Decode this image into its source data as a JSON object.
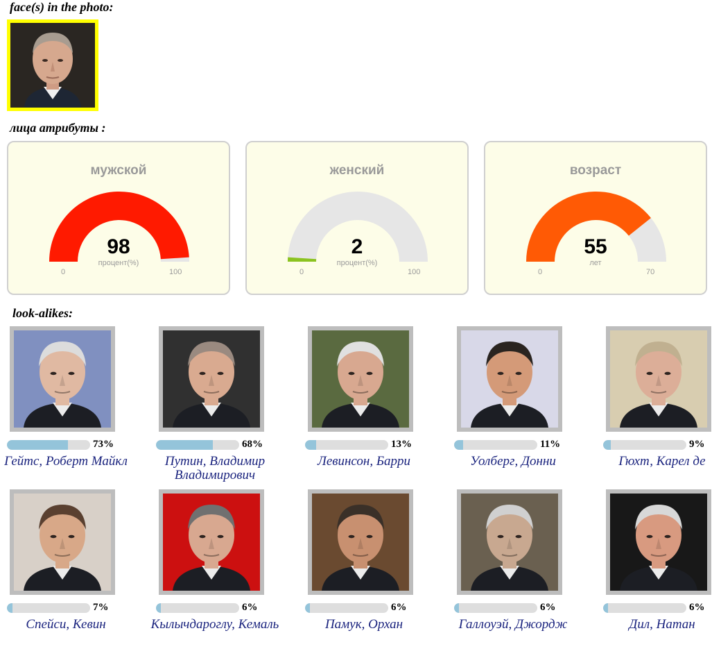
{
  "sections": {
    "faces_title": "face(s) in the photo:",
    "attributes_title": "лица атрибуты :",
    "lookalikes_title": "look-alikes:"
  },
  "detected_face": {
    "icon": "face-photo-icon",
    "border_color": "#ffff00"
  },
  "gauges": [
    {
      "id": "male",
      "title": "мужской",
      "value": 98,
      "display": "98",
      "unit": "процент(%)",
      "min": 0,
      "max": 100,
      "min_label": "0",
      "max_label": "100",
      "color": "#ff1a00"
    },
    {
      "id": "female",
      "title": "женский",
      "value": 2,
      "display": "2",
      "unit": "процент(%)",
      "min": 0,
      "max": 100,
      "min_label": "0",
      "max_label": "100",
      "color": "#8bc320"
    },
    {
      "id": "age",
      "title": "возраст",
      "value": 55,
      "display": "55",
      "unit": "лет",
      "min": 0,
      "max": 70,
      "min_label": "0",
      "max_label": "70",
      "color": "#ff5a05"
    }
  ],
  "gauge_track_color": "#e6e6e6",
  "lookalikes": [
    {
      "name": "Гейтс, Роберт Майкл",
      "percent": 73,
      "percent_label": "73%",
      "skin": "#e0b9a2",
      "hair": "#dcdcdc",
      "bg": "#8090c0"
    },
    {
      "name": "Путин, Владимир Владимирович",
      "percent": 68,
      "percent_label": "68%",
      "skin": "#d9aa90",
      "hair": "#9a8a80",
      "bg": "#303030"
    },
    {
      "name": "Левинсон, Барри",
      "percent": 13,
      "percent_label": "13%",
      "skin": "#d8a890",
      "hair": "#e0e0e0",
      "bg": "#5a6a40"
    },
    {
      "name": "Уолберг, Донни",
      "percent": 11,
      "percent_label": "11%",
      "skin": "#d49a78",
      "hair": "#2a2420",
      "bg": "#d8d8e8"
    },
    {
      "name": "Гюхт, Карел де",
      "percent": 9,
      "percent_label": "9%",
      "skin": "#dcae98",
      "hair": "#c0b090",
      "bg": "#d8cdb0"
    },
    {
      "name": "Спейси, Кевин",
      "percent": 7,
      "percent_label": "7%",
      "skin": "#d8a888",
      "hair": "#5a4030",
      "bg": "#d8d0c8"
    },
    {
      "name": "Кылычдароглу, Кемаль",
      "percent": 6,
      "percent_label": "6%",
      "skin": "#d8a890",
      "hair": "#707070",
      "bg": "#cc1010"
    },
    {
      "name": "Памук, Орхан",
      "percent": 6,
      "percent_label": "6%",
      "skin": "#c89070",
      "hair": "#3a3028",
      "bg": "#6a4a30"
    },
    {
      "name": "Галлоуэй, Джордж",
      "percent": 6,
      "percent_label": "6%",
      "skin": "#c8a890",
      "hair": "#d0d0d0",
      "bg": "#6a6050"
    },
    {
      "name": "Дил, Натан",
      "percent": 6,
      "percent_label": "6%",
      "skin": "#d89a80",
      "hair": "#d8d8d8",
      "bg": "#181818"
    }
  ]
}
